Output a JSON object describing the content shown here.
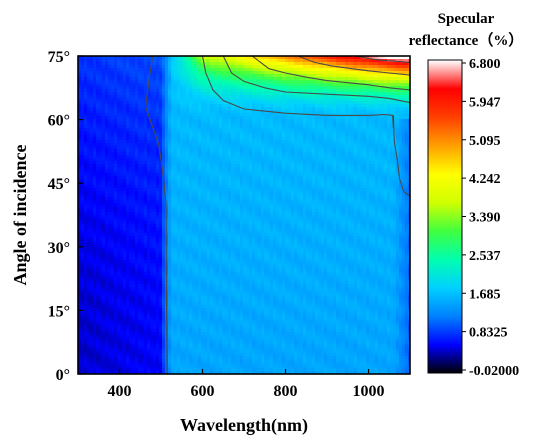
{
  "chart_data": {
    "type": "heatmap",
    "xlabel": "Wavelength(nm)",
    "ylabel": "Angle of incidence",
    "xlim": [
      300,
      1100
    ],
    "ylim": [
      0,
      75
    ],
    "x_ticks": [
      400,
      600,
      800,
      1000
    ],
    "y_ticks": [
      "0°",
      "15°",
      "30°",
      "45°",
      "60°",
      "75°"
    ],
    "y_tick_values": [
      0,
      15,
      30,
      45,
      60,
      75
    ],
    "grid": false,
    "colorbar": {
      "title_line1": "Specular",
      "title_line2": "reflectance（%）",
      "ticks": [
        "6.800",
        "5.947",
        "5.095",
        "4.242",
        "3.390",
        "2.537",
        "1.685",
        "0.8325",
        "-0.02000"
      ],
      "min": -0.02,
      "max": 6.8,
      "colors": [
        "#000000",
        "#0000ff",
        "#0080ff",
        "#00d0ff",
        "#00ffb0",
        "#40ff40",
        "#d0ff00",
        "#ffff00",
        "#ffa000",
        "#ff4000",
        "#ff0000",
        "#ffffff"
      ]
    },
    "contours": [
      {
        "level": 0.8325,
        "points": [
          [
            515,
            0
          ],
          [
            513,
            20
          ],
          [
            512,
            40
          ],
          [
            505,
            47
          ],
          [
            495,
            54
          ],
          [
            470,
            61
          ],
          [
            463,
            63
          ],
          [
            472,
            70
          ],
          [
            480,
            75
          ]
        ]
      },
      {
        "level": 0.8325,
        "points": [
          [
            1060,
            61
          ],
          [
            1062,
            55
          ],
          [
            1070,
            50
          ],
          [
            1075,
            46
          ],
          [
            1085,
            43
          ],
          [
            1100,
            42
          ]
        ]
      },
      {
        "level": 1.685,
        "points": [
          [
            600,
            75
          ],
          [
            608,
            71
          ],
          [
            625,
            67
          ],
          [
            650,
            64.5
          ],
          [
            700,
            62.5
          ],
          [
            800,
            61.5
          ],
          [
            900,
            61
          ],
          [
            1000,
            61
          ],
          [
            1040,
            61.2
          ],
          [
            1058,
            61
          ],
          [
            1060,
            58
          ]
        ]
      },
      {
        "level": 2.537,
        "points": [
          [
            650,
            75
          ],
          [
            670,
            71
          ],
          [
            700,
            69
          ],
          [
            750,
            67.5
          ],
          [
            800,
            66.5
          ],
          [
            900,
            66
          ],
          [
            1000,
            65.5
          ],
          [
            1050,
            65
          ],
          [
            1100,
            64
          ]
        ]
      },
      {
        "level": 3.39,
        "points": [
          [
            720,
            75
          ],
          [
            760,
            72
          ],
          [
            800,
            71
          ],
          [
            850,
            70
          ],
          [
            900,
            69.2
          ],
          [
            950,
            68.7
          ],
          [
            1000,
            68.2
          ],
          [
            1050,
            67.5
          ],
          [
            1100,
            67
          ]
        ]
      },
      {
        "level": 4.242,
        "points": [
          [
            830,
            75
          ],
          [
            870,
            73.5
          ],
          [
            910,
            72.7
          ],
          [
            960,
            72
          ],
          [
            1000,
            71.5
          ],
          [
            1050,
            71
          ],
          [
            1100,
            70.5
          ]
        ]
      },
      {
        "level": 5.095,
        "points": [
          [
            970,
            75
          ],
          [
            1000,
            74.4
          ],
          [
            1030,
            74
          ],
          [
            1060,
            73.8
          ],
          [
            1100,
            73.5
          ]
        ]
      }
    ]
  }
}
